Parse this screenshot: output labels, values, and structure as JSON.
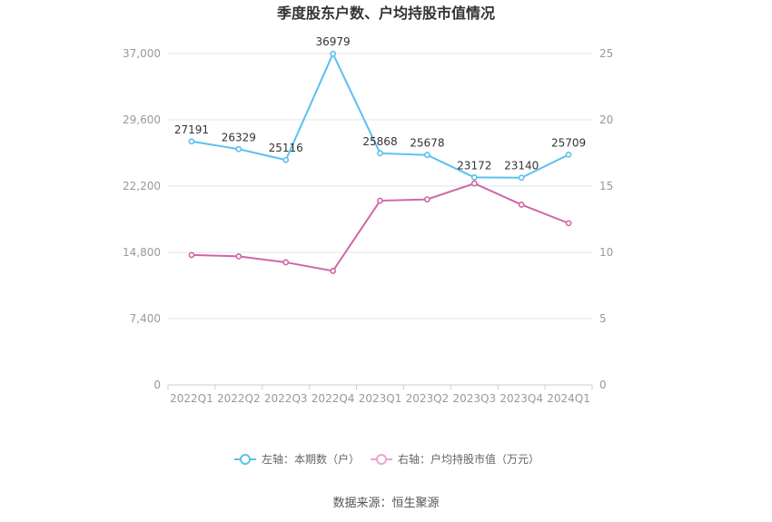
{
  "chart_data": {
    "type": "line",
    "title": "季度股东户数、户均持股市值情况",
    "categories": [
      "2022Q1",
      "2022Q2",
      "2022Q3",
      "2022Q4",
      "2023Q1",
      "2023Q2",
      "2023Q3",
      "2023Q4",
      "2024Q1"
    ],
    "left_axis": {
      "ticks": [
        "0",
        "7,400",
        "14,800",
        "22,200",
        "29,600",
        "37,000"
      ],
      "ylim": [
        0,
        37000
      ]
    },
    "right_axis": {
      "ticks": [
        "0",
        "5",
        "10",
        "15",
        "20",
        "25"
      ],
      "ylim": [
        0,
        25
      ]
    },
    "series": [
      {
        "name": "左轴：本期数（户）",
        "axis": "left",
        "color": "#5bc0f0",
        "values": [
          27191,
          26329,
          25116,
          36979,
          25868,
          25678,
          23172,
          23140,
          25709
        ],
        "labels": [
          "27191",
          "26329",
          "25116",
          "36979",
          "25868",
          "25678",
          "23172",
          "23140",
          "25709"
        ]
      },
      {
        "name": "右轴：户均持股市值（万元）",
        "axis": "right",
        "color": "#d066a8",
        "values": [
          9.8,
          9.7,
          9.25,
          8.6,
          13.9,
          14.0,
          15.2,
          13.6,
          12.2
        ]
      }
    ],
    "grid": true,
    "legend_position": "bottom"
  },
  "source": "数据来源：恒生聚源"
}
